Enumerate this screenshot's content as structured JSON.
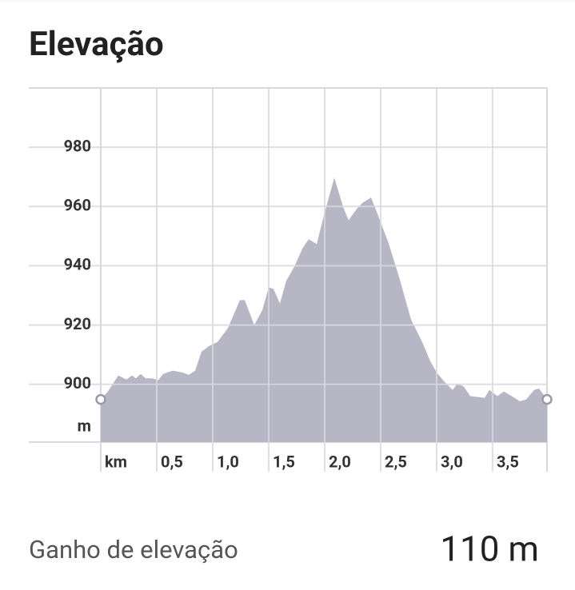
{
  "chart_data": {
    "type": "area",
    "title": "Elevação",
    "x_unit": "km",
    "y_unit": "m",
    "x": [
      0,
      0.064,
      0.157,
      0.229,
      0.279,
      0.314,
      0.357,
      0.4,
      0.457,
      0.514,
      0.557,
      0.643,
      0.729,
      0.786,
      0.843,
      0.9,
      0.971,
      1.043,
      1.136,
      1.243,
      1.286,
      1.371,
      1.443,
      1.5,
      1.543,
      1.6,
      1.657,
      1.729,
      1.8,
      1.857,
      1.929,
      1.993,
      2.086,
      2.171,
      2.214,
      2.286,
      2.343,
      2.414,
      2.471,
      2.571,
      2.671,
      2.771,
      2.871,
      2.943,
      3.0,
      3.071,
      3.143,
      3.186,
      3.243,
      3.3,
      3.371,
      3.429,
      3.471,
      3.543,
      3.6,
      3.671,
      3.743,
      3.8,
      3.871,
      3.914,
      3.986
    ],
    "values": [
      894.9,
      897.6,
      903,
      901.6,
      903,
      902,
      903.5,
      902,
      902,
      901.4,
      903.5,
      904.6,
      904,
      903.2,
      904.6,
      911,
      913,
      914.3,
      919,
      928.4,
      928.4,
      920,
      925,
      932.7,
      932.2,
      927.3,
      934.9,
      939.7,
      945.7,
      949,
      947.3,
      957,
      969.7,
      959.2,
      955.4,
      959.2,
      961.4,
      963,
      957.6,
      947.6,
      935.4,
      921.9,
      914.3,
      907.8,
      904,
      900.8,
      898.1,
      900.3,
      899.2,
      896,
      895.7,
      895.4,
      898.1,
      896,
      897.6,
      896,
      894.3,
      894.9,
      898.1,
      898.6,
      894.9
    ],
    "color": "#b7b6c4",
    "xlim": [
      0,
      3.986
    ],
    "ylim": [
      880.5,
      1000
    ],
    "xticks": [
      {
        "value": 0.5,
        "label": "0,5"
      },
      {
        "value": 1.0,
        "label": "1,0"
      },
      {
        "value": 1.5,
        "label": "1,5"
      },
      {
        "value": 2.0,
        "label": "2,0"
      },
      {
        "value": 2.5,
        "label": "2,5"
      },
      {
        "value": 3.0,
        "label": "3,0"
      },
      {
        "value": 3.5,
        "label": "3,5"
      }
    ],
    "yticks": [
      900,
      920,
      940,
      960,
      980
    ],
    "grid": true
  },
  "summary": {
    "label": "Ganho de elevação",
    "value": "110 m"
  }
}
